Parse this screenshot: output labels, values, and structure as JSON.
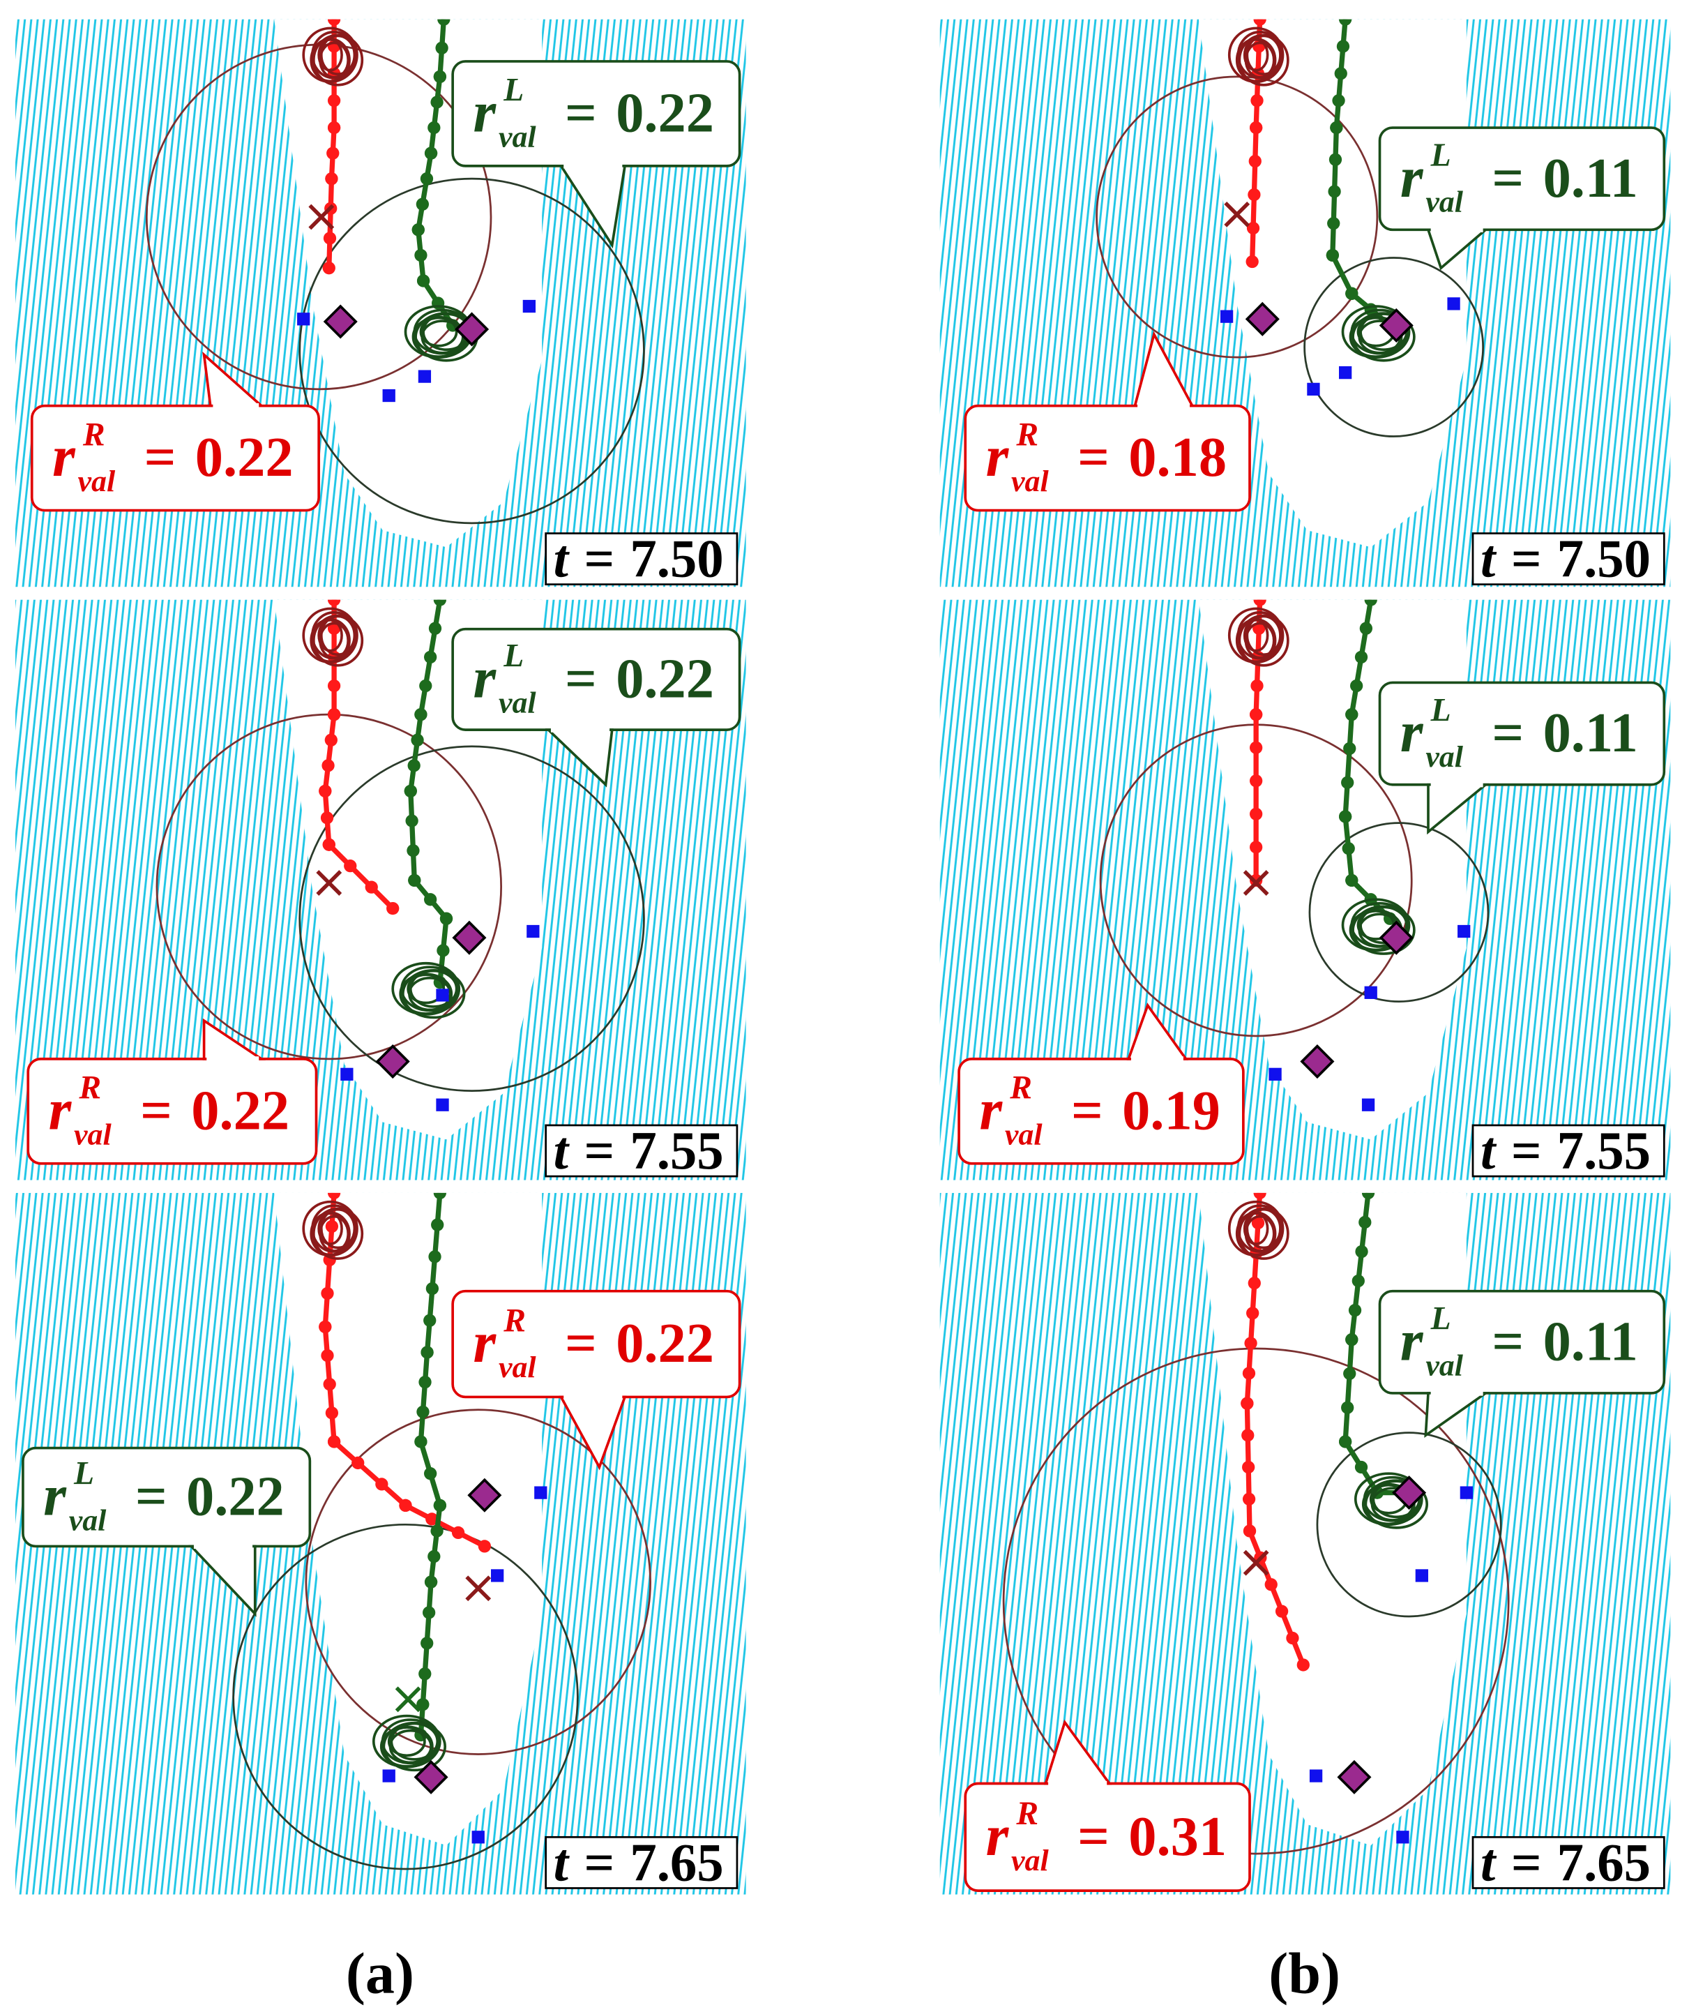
{
  "panels": [
    {
      "time": {
        "symbol": "t",
        "relation": "=",
        "value": "7.50"
      },
      "callouts": [
        {
          "symbol": "r",
          "superscript": "L",
          "subscript": "val",
          "relation": "=",
          "value": "0.22"
        },
        {
          "symbol": "r",
          "superscript": "R",
          "subscript": "val",
          "relation": "=",
          "value": "0.22"
        }
      ]
    },
    {
      "time": {
        "symbol": "t",
        "relation": "=",
        "value": "7.55"
      },
      "callouts": [
        {
          "symbol": "r",
          "superscript": "L",
          "subscript": "val",
          "relation": "=",
          "value": "0.22"
        },
        {
          "symbol": "r",
          "superscript": "R",
          "subscript": "val",
          "relation": "=",
          "value": "0.22"
        }
      ]
    },
    {
      "time": {
        "symbol": "t",
        "relation": "=",
        "value": "7.65"
      },
      "callouts": [
        {
          "symbol": "r",
          "superscript": "R",
          "subscript": "val",
          "relation": "=",
          "value": "0.22"
        },
        {
          "symbol": "r",
          "superscript": "L",
          "subscript": "val",
          "relation": "=",
          "value": "0.22"
        }
      ]
    },
    {
      "time": {
        "symbol": "t",
        "relation": "=",
        "value": "7.50"
      },
      "callouts": [
        {
          "symbol": "r",
          "superscript": "L",
          "subscript": "val",
          "relation": "=",
          "value": "0.11"
        },
        {
          "symbol": "r",
          "superscript": "R",
          "subscript": "val",
          "relation": "=",
          "value": "0.18"
        }
      ]
    },
    {
      "time": {
        "symbol": "t",
        "relation": "=",
        "value": "7.55"
      },
      "callouts": [
        {
          "symbol": "r",
          "superscript": "L",
          "subscript": "val",
          "relation": "=",
          "value": "0.11"
        },
        {
          "symbol": "r",
          "superscript": "R",
          "subscript": "val",
          "relation": "=",
          "value": "0.19"
        }
      ]
    },
    {
      "time": {
        "symbol": "t",
        "relation": "=",
        "value": "7.65"
      },
      "callouts": [
        {
          "symbol": "r",
          "superscript": "L",
          "subscript": "val",
          "relation": "=",
          "value": "0.11"
        },
        {
          "symbol": "r",
          "superscript": "R",
          "subscript": "val",
          "relation": "=",
          "value": "0.31"
        }
      ]
    }
  ],
  "column_labels": [
    "(a)",
    "(b)"
  ]
}
